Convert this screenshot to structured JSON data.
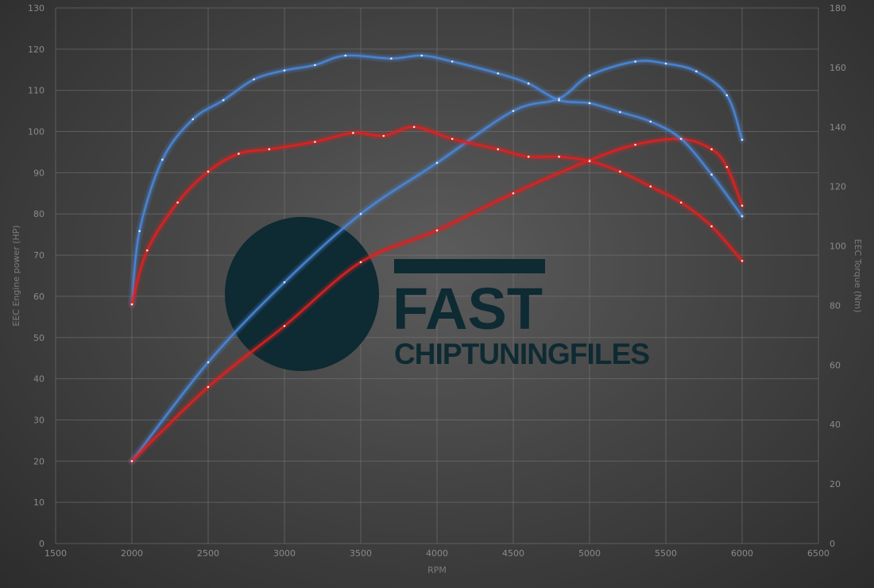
{
  "chart_data": {
    "type": "line",
    "title": "",
    "xlabel": "RPM",
    "ylabel": "EEC Engine power (HP)",
    "y2label": "EEC Torque (Nm)",
    "xlim": [
      1500,
      6500
    ],
    "ylim": [
      0,
      130
    ],
    "y2lim": [
      0,
      180
    ],
    "xticks": [
      1500,
      2000,
      2500,
      3000,
      3500,
      4000,
      4500,
      5000,
      5500,
      6000,
      6500
    ],
    "yticks": [
      0,
      10,
      20,
      30,
      40,
      50,
      60,
      70,
      80,
      90,
      100,
      110,
      120,
      130
    ],
    "y2ticks": [
      0,
      20,
      40,
      60,
      80,
      100,
      120,
      140,
      160,
      180
    ],
    "grid": true,
    "series": [
      {
        "axis": "left",
        "color": "#4a86d8",
        "x": [
          2000,
          2500,
          3000,
          3500,
          4000,
          4500,
          4800,
          5000,
          5300,
          5500,
          5700,
          5900,
          6000
        ],
        "values": [
          20,
          44,
          63.4,
          80,
          92.4,
          105,
          108,
          113.6,
          117,
          116.5,
          114.6,
          108.8,
          98
        ]
      },
      {
        "axis": "left",
        "color": "#e02020",
        "x": [
          2000,
          2500,
          3000,
          3500,
          4000,
          4500,
          5000,
          5300,
          5600,
          5800,
          5900,
          6000
        ],
        "values": [
          20,
          38,
          52.8,
          68.3,
          76,
          85,
          93,
          96.8,
          98.2,
          95.7,
          91.4,
          82
        ]
      },
      {
        "axis": "right",
        "color": "#4a86d8",
        "x": [
          2000,
          2050,
          2200,
          2400,
          2600,
          2800,
          3000,
          3200,
          3400,
          3700,
          3900,
          4100,
          4400,
          4600,
          4800,
          5000,
          5200,
          5400,
          5600,
          5800,
          6000
        ],
        "values": [
          80.4,
          105,
          129,
          142.6,
          149,
          156,
          159,
          160.8,
          164,
          163,
          164,
          162,
          158,
          154.6,
          149,
          148,
          145,
          141.8,
          136,
          124,
          110
        ]
      },
      {
        "axis": "right",
        "color": "#e02020",
        "x": [
          2000,
          2100,
          2300,
          2500,
          2700,
          2900,
          3200,
          3450,
          3650,
          3850,
          4100,
          4400,
          4600,
          4800,
          5000,
          5200,
          5400,
          5600,
          5800,
          6000
        ],
        "values": [
          80.4,
          98.5,
          114.6,
          125,
          131,
          132.5,
          135,
          138,
          137,
          140,
          136,
          132.5,
          130,
          130,
          128.5,
          125,
          120,
          114.6,
          106.6,
          95
        ]
      }
    ]
  },
  "watermark": {
    "line1": "FAST",
    "line2": "CHIPTUNINGFILES",
    "color": "#0e2a32"
  }
}
